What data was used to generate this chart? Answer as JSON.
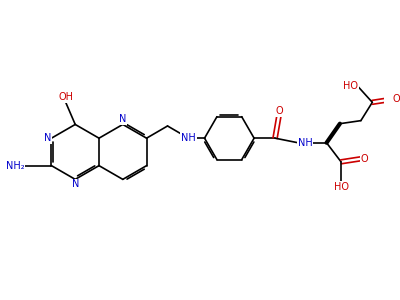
{
  "bg_color": "#ffffff",
  "bond_color": "#000000",
  "n_color": "#0000cc",
  "o_color": "#cc0000",
  "font_size": 7.0,
  "bond_width": 1.2,
  "figsize": [
    4.0,
    3.0
  ],
  "dpi": 100,
  "xlim": [
    0,
    10
  ],
  "ylim": [
    0,
    7.5
  ]
}
